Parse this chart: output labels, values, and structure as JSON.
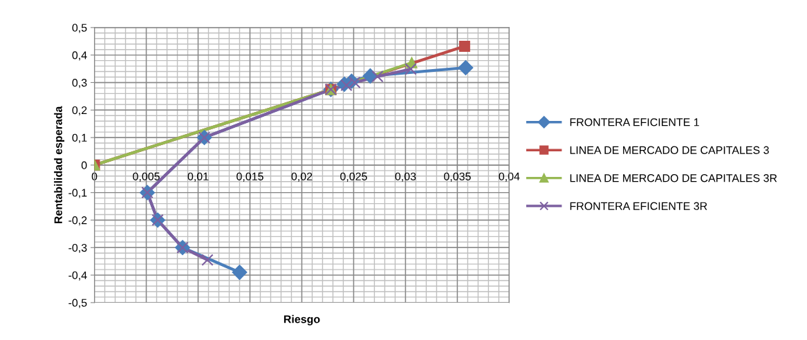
{
  "chart_data": {
    "type": "line",
    "xlabel": "Riesgo",
    "ylabel": "Rentabilidad esperada",
    "xlim": [
      0,
      0.04
    ],
    "ylim": [
      -0.5,
      0.5
    ],
    "xticks": [
      0,
      {
        "value": 0.005,
        "label": "0,005"
      },
      {
        "value": 0.01,
        "label": "0,01"
      },
      {
        "value": 0.015,
        "label": "0,015"
      },
      {
        "value": 0.02,
        "label": "0,02"
      },
      {
        "value": 0.025,
        "label": "0,025"
      },
      {
        "value": 0.03,
        "label": "0,03"
      },
      {
        "value": 0.035,
        "label": "0,035"
      },
      {
        "value": 0.04,
        "label": "0,04"
      }
    ],
    "yticks": [
      {
        "value": -0.5,
        "label": "-0,5"
      },
      {
        "value": -0.4,
        "label": "-0,4"
      },
      {
        "value": -0.3,
        "label": "-0,3"
      },
      {
        "value": -0.2,
        "label": "-0,2"
      },
      {
        "value": -0.1,
        "label": "-0,1"
      },
      0,
      {
        "value": 0.1,
        "label": "0,1"
      },
      {
        "value": 0.2,
        "label": "0,2"
      },
      {
        "value": 0.3,
        "label": "0,3"
      },
      {
        "value": 0.4,
        "label": "0,4"
      },
      {
        "value": 0.5,
        "label": "0,5"
      }
    ],
    "grid": true,
    "legend": "right",
    "line_style": "solid",
    "series": [
      {
        "name": "FRONTERA EFICIENTE 1",
        "color": "#4a7ebb",
        "marker": "diamond",
        "x": [
          0.014,
          0.0085,
          0.0061,
          0.0051,
          0.0106,
          0.0228,
          0.0241,
          0.0248,
          0.0266,
          0.0358
        ],
        "values": [
          -0.39,
          -0.3,
          -0.2,
          -0.1,
          0.1,
          0.275,
          0.294,
          0.305,
          0.324,
          0.354
        ]
      },
      {
        "name": "LINEA DE MERCADO DE CAPITALES 3",
        "color": "#be4b48",
        "marker": "square",
        "x": [
          0,
          0.0228,
          0.0357
        ],
        "values": [
          0,
          0.275,
          0.432
        ]
      },
      {
        "name": "LINEA DE MERCADO DE CAPITALES 3R",
        "color": "#98b954",
        "marker": "triangle",
        "x": [
          0,
          0.0228,
          0.0306
        ],
        "values": [
          0,
          0.275,
          0.372
        ]
      },
      {
        "name": "FRONTERA EFICIENTE 3R",
        "color": "#7d60a0",
        "marker": "cross",
        "x": [
          0.0109,
          0.0085,
          0.0061,
          0.0051,
          0.0106,
          0.0228,
          0.0243,
          0.0251,
          0.0273,
          0.0305
        ],
        "values": [
          -0.345,
          -0.3,
          -0.2,
          -0.1,
          0.1,
          0.275,
          0.29,
          0.3,
          0.322,
          0.349
        ]
      }
    ]
  }
}
